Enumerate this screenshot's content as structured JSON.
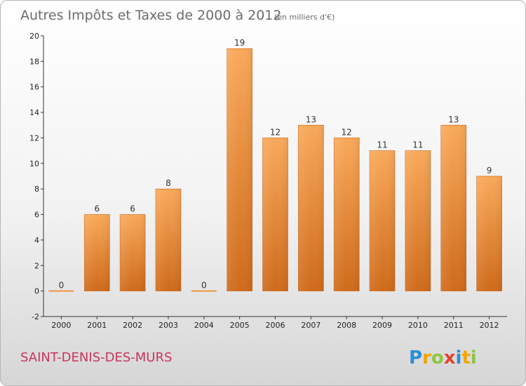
{
  "chart_data": {
    "type": "bar",
    "title": "Autres Impôts et Taxes de 2000 à 2012",
    "subtitle": "(en milliers d'€)",
    "categories": [
      "2000",
      "2001",
      "2002",
      "2003",
      "2004",
      "2005",
      "2006",
      "2007",
      "2008",
      "2009",
      "2010",
      "2011",
      "2012"
    ],
    "values": [
      0,
      6,
      6,
      8,
      0,
      19,
      12,
      13,
      12,
      11,
      11,
      13,
      9
    ],
    "ylim": [
      -2,
      20
    ],
    "yticks": [
      -2,
      0,
      2,
      4,
      6,
      8,
      10,
      12,
      14,
      16,
      18,
      20
    ],
    "grid": false,
    "bar_color": "#f0963f"
  },
  "location": "SAINT-DENIS-DES-MURS",
  "brand": {
    "letters": [
      {
        "char": "P",
        "color": "#2a8fd6"
      },
      {
        "char": "r",
        "color": "#f2a500"
      },
      {
        "char": "o",
        "color": "#8cc63f"
      },
      {
        "char": "x",
        "color": "#e0452f"
      },
      {
        "char": "i",
        "color": "#2a8fd6"
      },
      {
        "char": "t",
        "color": "#f2a500"
      },
      {
        "char": "i",
        "color": "#8cc63f"
      }
    ]
  }
}
